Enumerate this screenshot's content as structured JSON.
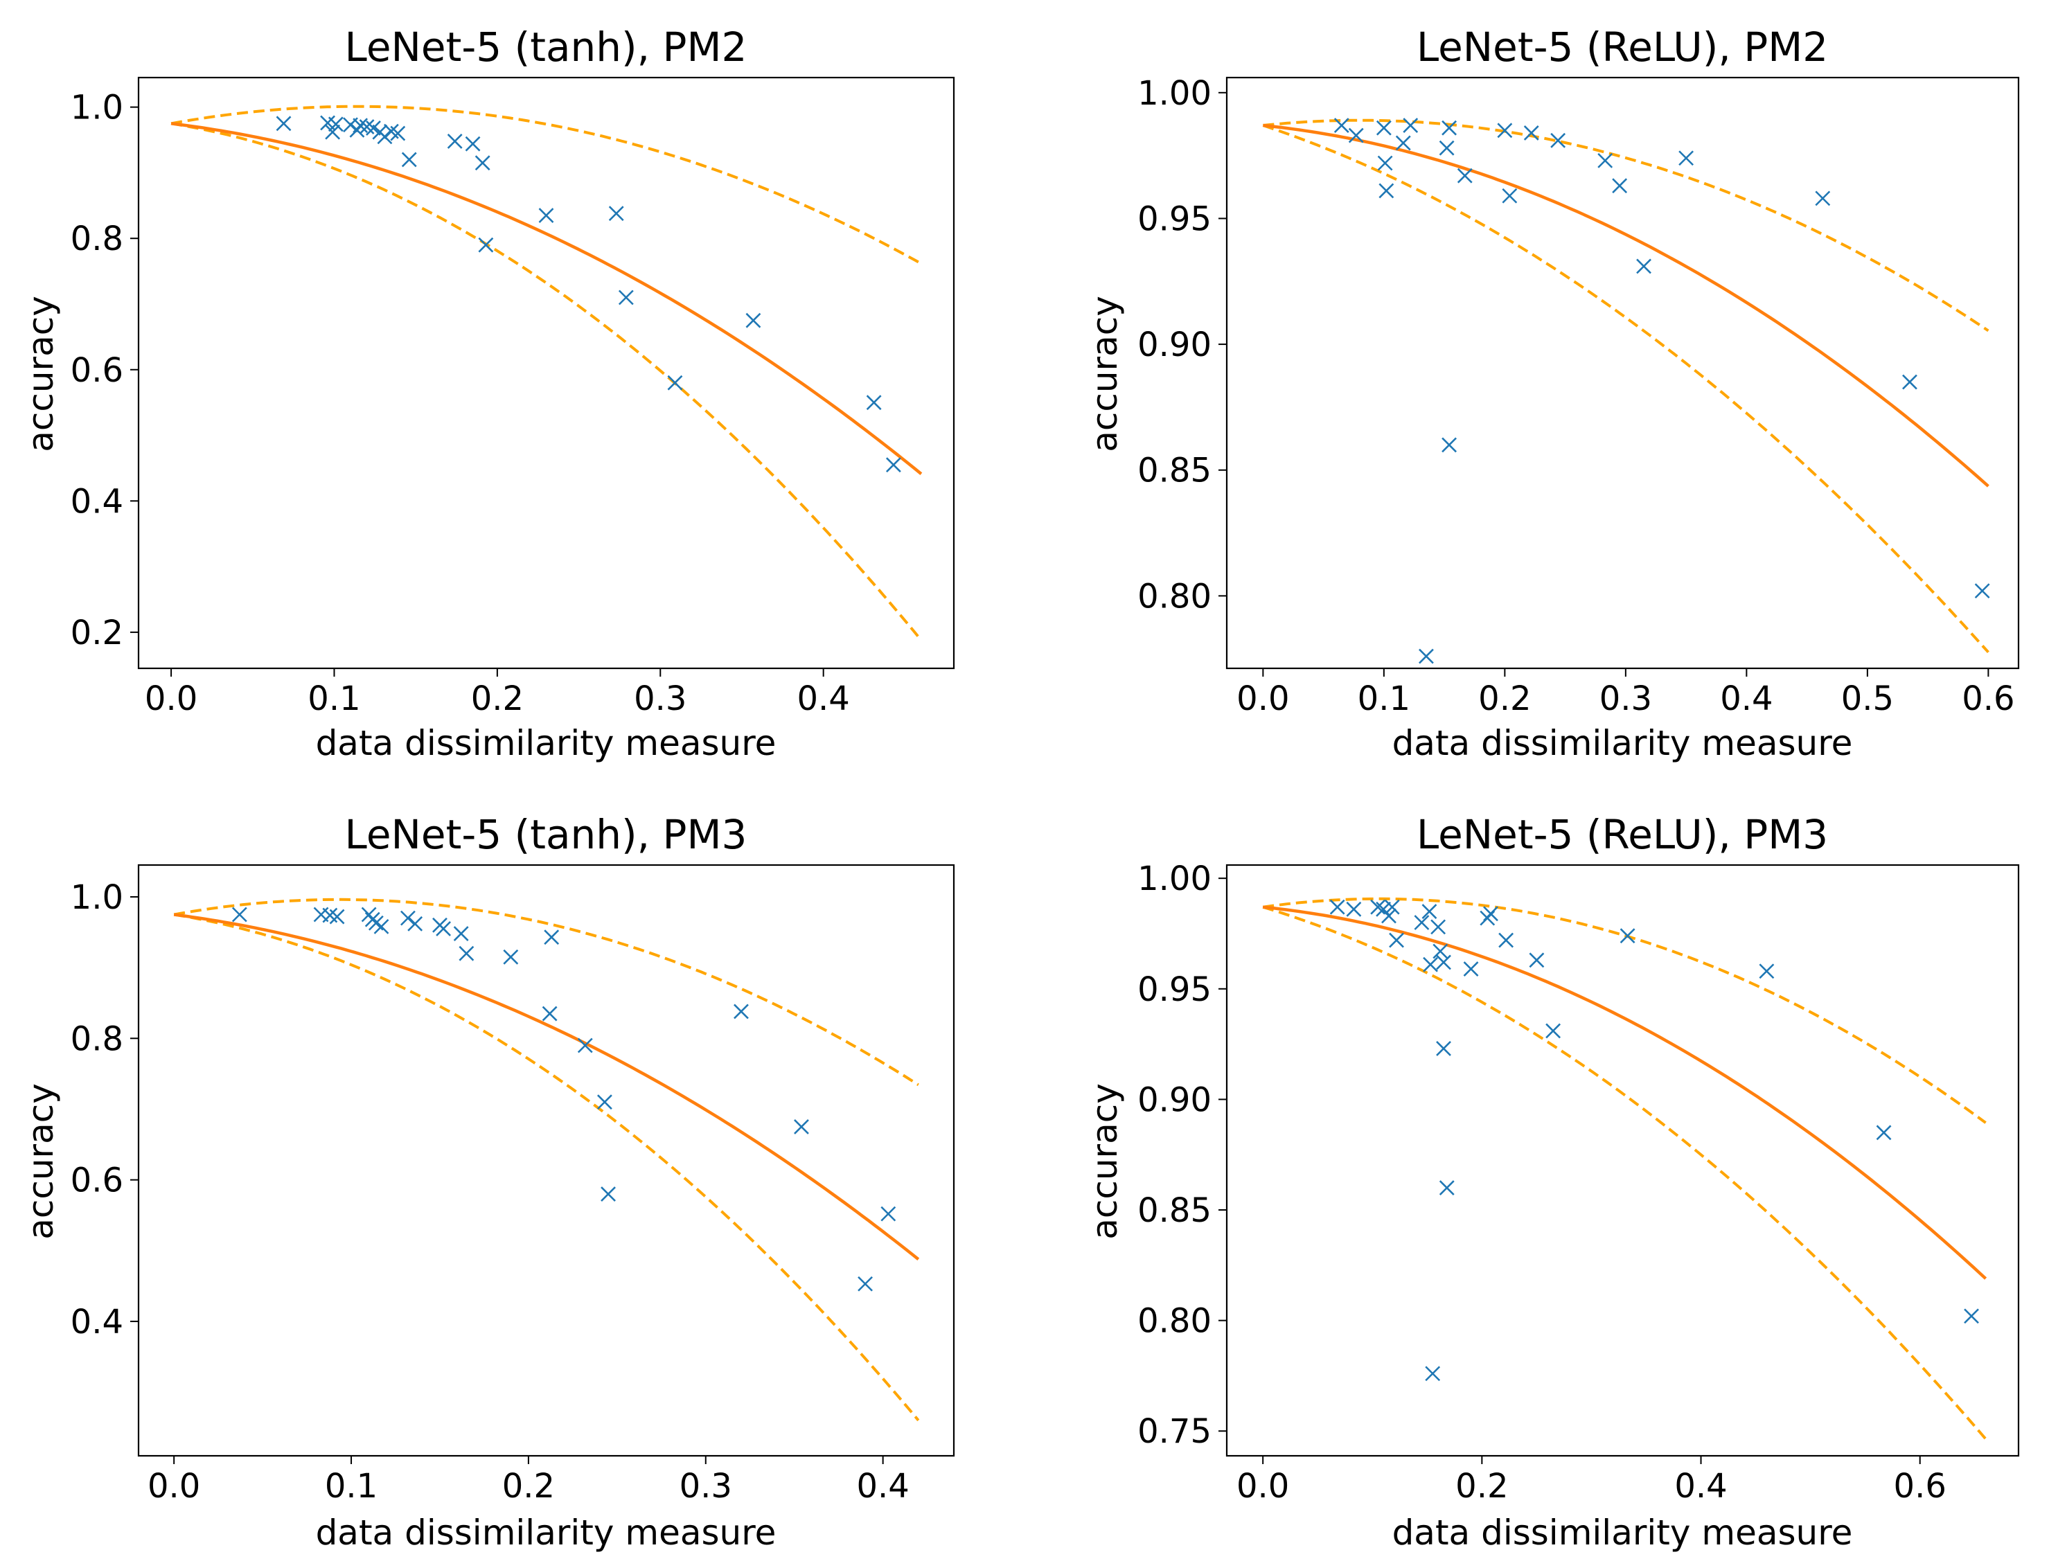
{
  "chart_data": [
    {
      "type": "scatter",
      "title": "LeNet-5 (tanh), PM2",
      "xlabel": "data dissimilarity measure",
      "ylabel": "accuracy",
      "xlim": [
        -0.02,
        0.48
      ],
      "ylim": [
        0.145,
        1.045
      ],
      "xticks": [
        0.0,
        0.1,
        0.2,
        0.3,
        0.4
      ],
      "xtick_labels": [
        "0.0",
        "0.1",
        "0.2",
        "0.3",
        "0.4"
      ],
      "yticks": [
        0.2,
        0.4,
        0.6,
        0.8,
        1.0
      ],
      "ytick_labels": [
        "0.2",
        "0.4",
        "0.6",
        "0.8",
        "1.0"
      ],
      "curves": {
        "x_max": 0.46,
        "fit": {
          "a": 0.975,
          "b": -0.3,
          "c": -1.87
        },
        "upper": {
          "a": 0.975,
          "b": 0.456,
          "c": -2.0
        },
        "lower": {
          "a": 0.975,
          "b": -0.4,
          "c": -2.85
        }
      },
      "points": {
        "x": [
          0.069,
          0.096,
          0.099,
          0.101,
          0.11,
          0.114,
          0.116,
          0.12,
          0.124,
          0.128,
          0.131,
          0.135,
          0.139,
          0.146,
          0.174,
          0.185,
          0.191,
          0.193,
          0.23,
          0.273,
          0.279,
          0.309,
          0.357,
          0.431,
          0.443
        ],
        "y": [
          0.975,
          0.976,
          0.962,
          0.974,
          0.973,
          0.965,
          0.972,
          0.97,
          0.968,
          0.962,
          0.955,
          0.963,
          0.96,
          0.92,
          0.948,
          0.944,
          0.915,
          0.79,
          0.835,
          0.838,
          0.71,
          0.58,
          0.675,
          0.55,
          0.455
        ]
      }
    },
    {
      "type": "scatter",
      "title": "LeNet-5 (ReLU), PM2",
      "xlabel": "data dissimilarity measure",
      "ylabel": "accuracy",
      "xlim": [
        -0.03,
        0.625
      ],
      "ylim": [
        0.7712,
        1.006
      ],
      "xticks": [
        0.0,
        0.1,
        0.2,
        0.3,
        0.4,
        0.5,
        0.6
      ],
      "xtick_labels": [
        "0.0",
        "0.1",
        "0.2",
        "0.3",
        "0.4",
        "0.5",
        "0.6"
      ],
      "yticks": [
        0.8,
        0.85,
        0.9,
        0.95,
        1.0
      ],
      "ytick_labels": [
        "0.80",
        "0.85",
        "0.90",
        "0.95",
        "1.00"
      ],
      "curves": {
        "x_max": 0.6,
        "fit": {
          "a": 0.987,
          "b": -0.05,
          "c": -0.315
        },
        "upper": {
          "a": 0.987,
          "b": 0.05,
          "c": -0.31
        },
        "lower": {
          "a": 0.987,
          "b": -0.16,
          "c": -0.315
        }
      },
      "points": {
        "x": [
          0.065,
          0.077,
          0.1,
          0.101,
          0.102,
          0.116,
          0.122,
          0.152,
          0.154,
          0.154,
          0.167,
          0.2,
          0.204,
          0.222,
          0.244,
          0.283,
          0.295,
          0.315,
          0.35,
          0.135,
          0.463,
          0.535,
          0.595
        ],
        "y": [
          0.987,
          0.983,
          0.986,
          0.972,
          0.961,
          0.98,
          0.987,
          0.978,
          0.986,
          0.86,
          0.967,
          0.985,
          0.959,
          0.984,
          0.981,
          0.973,
          0.963,
          0.931,
          0.974,
          0.776,
          0.958,
          0.885,
          0.802
        ]
      }
    },
    {
      "type": "scatter",
      "title": "LeNet-5 (tanh), PM3",
      "xlabel": "data dissimilarity measure",
      "ylabel": "accuracy",
      "xlim": [
        -0.02,
        0.44
      ],
      "ylim": [
        0.21,
        1.045
      ],
      "xticks": [
        0.0,
        0.1,
        0.2,
        0.3,
        0.4
      ],
      "xtick_labels": [
        "0.0",
        "0.1",
        "0.2",
        "0.3",
        "0.4"
      ],
      "yticks": [
        0.4,
        0.6,
        0.8,
        1.0
      ],
      "ytick_labels": [
        "0.4",
        "0.6",
        "0.8",
        "1.0"
      ],
      "curves": {
        "x_max": 0.42,
        "fit": {
          "a": 0.975,
          "b": -0.32,
          "c": -2.0
        },
        "upper": {
          "a": 0.975,
          "b": 0.456,
          "c": -2.45
        },
        "lower": {
          "a": 0.975,
          "b": -0.4,
          "c": -3.1
        }
      },
      "points": {
        "x": [
          0.037,
          0.083,
          0.088,
          0.092,
          0.11,
          0.112,
          0.114,
          0.117,
          0.132,
          0.136,
          0.15,
          0.152,
          0.162,
          0.165,
          0.19,
          0.213,
          0.212,
          0.232,
          0.243,
          0.245,
          0.32,
          0.354,
          0.39,
          0.403
        ],
        "y": [
          0.975,
          0.975,
          0.974,
          0.972,
          0.975,
          0.968,
          0.963,
          0.958,
          0.97,
          0.962,
          0.96,
          0.955,
          0.948,
          0.92,
          0.915,
          0.943,
          0.835,
          0.79,
          0.71,
          0.58,
          0.838,
          0.675,
          0.453,
          0.552
        ]
      }
    },
    {
      "type": "scatter",
      "title": "LeNet-5 (ReLU), PM3",
      "xlabel": "data dissimilarity measure",
      "ylabel": "accuracy",
      "xlim": [
        -0.033,
        0.69
      ],
      "ylim": [
        0.7388,
        1.006
      ],
      "xticks": [
        0.0,
        0.2,
        0.4,
        0.6
      ],
      "xtick_labels": [
        "0.0",
        "0.2",
        "0.4",
        "0.6"
      ],
      "yticks": [
        0.75,
        0.8,
        0.85,
        0.9,
        0.95,
        1.0
      ],
      "ytick_labels": [
        "0.75",
        "0.80",
        "0.85",
        "0.90",
        "0.95",
        "1.00"
      ],
      "curves": {
        "x_max": 0.66,
        "fit": {
          "a": 0.987,
          "b": -0.05,
          "c": -0.31
        },
        "upper": {
          "a": 0.987,
          "b": 0.07,
          "c": -0.33
        },
        "lower": {
          "a": 0.987,
          "b": -0.15,
          "c": -0.325
        }
      },
      "points": {
        "x": [
          0.068,
          0.083,
          0.105,
          0.11,
          0.115,
          0.118,
          0.122,
          0.145,
          0.152,
          0.153,
          0.16,
          0.162,
          0.165,
          0.168,
          0.19,
          0.205,
          0.208,
          0.222,
          0.25,
          0.265,
          0.333,
          0.46,
          0.165,
          0.155,
          0.567,
          0.647
        ],
        "y": [
          0.987,
          0.986,
          0.987,
          0.986,
          0.983,
          0.987,
          0.972,
          0.98,
          0.985,
          0.961,
          0.978,
          0.967,
          0.923,
          0.86,
          0.959,
          0.982,
          0.984,
          0.972,
          0.963,
          0.931,
          0.974,
          0.958,
          0.962,
          0.776,
          0.885,
          0.802
        ]
      }
    }
  ]
}
